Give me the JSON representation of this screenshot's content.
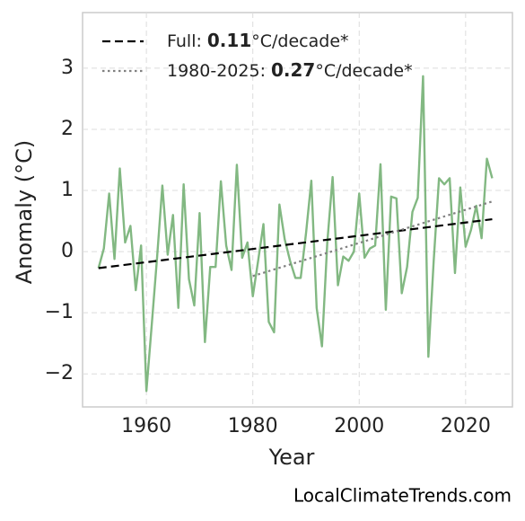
{
  "chart_data": {
    "type": "line",
    "xlabel": "Year",
    "ylabel": "Anomaly (°C)",
    "watermark": "LocalClimateTrends.com",
    "x": [
      1951,
      1952,
      1953,
      1954,
      1955,
      1956,
      1957,
      1958,
      1959,
      1960,
      1961,
      1962,
      1963,
      1964,
      1965,
      1966,
      1967,
      1968,
      1969,
      1970,
      1971,
      1972,
      1973,
      1974,
      1975,
      1976,
      1977,
      1978,
      1979,
      1980,
      1981,
      1982,
      1983,
      1984,
      1985,
      1986,
      1987,
      1988,
      1989,
      1990,
      1991,
      1992,
      1993,
      1994,
      1995,
      1996,
      1997,
      1998,
      1999,
      2000,
      2001,
      2002,
      2003,
      2004,
      2005,
      2006,
      2007,
      2008,
      2009,
      2010,
      2011,
      2012,
      2013,
      2014,
      2015,
      2016,
      2017,
      2018,
      2019,
      2020,
      2021,
      2022,
      2023,
      2024,
      2025
    ],
    "series": [
      {
        "color": "#82b882",
        "values": [
          -0.27,
          0.05,
          0.95,
          -0.12,
          1.36,
          0.15,
          0.42,
          -0.63,
          0.1,
          -2.28,
          -1.2,
          -0.1,
          1.08,
          -0.05,
          0.6,
          -0.92,
          1.1,
          -0.45,
          -0.88,
          0.63,
          -1.48,
          -0.25,
          -0.25,
          1.15,
          0.1,
          -0.3,
          1.42,
          -0.1,
          0.15,
          -0.73,
          -0.15,
          0.45,
          -1.15,
          -1.32,
          0.77,
          0.2,
          -0.15,
          -0.43,
          -0.43,
          0.3,
          1.16,
          -0.92,
          -1.55,
          0.15,
          1.22,
          -0.55,
          -0.08,
          -0.15,
          0.0,
          0.95,
          -0.1,
          0.05,
          0.1,
          1.43,
          -0.95,
          0.9,
          0.87,
          -0.68,
          -0.25,
          0.65,
          0.88,
          2.87,
          -1.72,
          -0.15,
          1.2,
          1.1,
          1.2,
          -0.35,
          1.05,
          0.08,
          0.35,
          0.75,
          0.22,
          1.52,
          1.2
        ]
      },
      {
        "name": "Full:",
        "rate": "0.11",
        "unit": "°C/decade*",
        "color": "#000000",
        "dash": "dashed",
        "x": [
          1951,
          2025
        ],
        "values": [
          -0.27,
          0.53
        ]
      },
      {
        "name": "1980-2025:",
        "rate": "0.27",
        "unit": "°C/decade*",
        "color": "#808080",
        "dash": "dotted",
        "x": [
          1980,
          2025
        ],
        "values": [
          -0.4,
          0.82
        ]
      }
    ],
    "xlim": [
      1948,
      2028.8
    ],
    "ylim": [
      -2.54,
      3.91
    ],
    "xticks": [
      1960,
      1980,
      2000,
      2020
    ],
    "yticks": [
      {
        "value": -2,
        "label": "−2"
      },
      {
        "value": -1,
        "label": "−1"
      },
      0,
      1,
      2,
      3
    ],
    "grid": true,
    "legend": "upper left"
  }
}
